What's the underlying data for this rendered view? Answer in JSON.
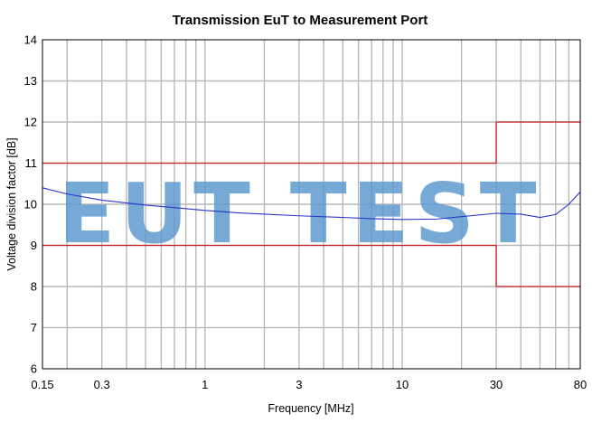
{
  "chart_data": {
    "type": "line",
    "title": "Transmission EuT to Measurement Port",
    "xlabel": "Frequency [MHz]",
    "ylabel": "Voltage division factor [dB]",
    "x_scale": "log",
    "xlim": [
      0.15,
      80
    ],
    "ylim": [
      6,
      14
    ],
    "x_tick_labels": [
      "0.15",
      "0.3",
      "1",
      "3",
      "10",
      "30",
      "80"
    ],
    "x_tick_values": [
      0.15,
      0.3,
      1,
      3,
      10,
      30,
      80
    ],
    "y_tick_labels": [
      "6",
      "7",
      "8",
      "9",
      "10",
      "11",
      "12",
      "13",
      "14"
    ],
    "y_tick_values": [
      6,
      7,
      8,
      9,
      10,
      11,
      12,
      13,
      14
    ],
    "grid": true,
    "watermark": "EUT TEST",
    "series": [
      {
        "color": "#2a35c8",
        "x": [
          0.15,
          0.2,
          0.3,
          0.5,
          0.7,
          1,
          1.5,
          2,
          3,
          5,
          7,
          10,
          15,
          20,
          30,
          40,
          50,
          60,
          70,
          80
        ],
        "y": [
          10.4,
          10.25,
          10.1,
          9.98,
          9.92,
          9.85,
          9.79,
          9.76,
          9.72,
          9.68,
          9.65,
          9.63,
          9.64,
          9.7,
          9.78,
          9.76,
          9.68,
          9.75,
          10.0,
          10.3
        ]
      },
      {
        "color": "#c8252b",
        "x": [
          0.15,
          30,
          30,
          80
        ],
        "y": [
          11,
          11,
          12,
          12
        ]
      },
      {
        "color": "#c8252b",
        "x": [
          0.15,
          30,
          30,
          80
        ],
        "y": [
          9,
          9,
          8,
          8
        ]
      }
    ]
  }
}
